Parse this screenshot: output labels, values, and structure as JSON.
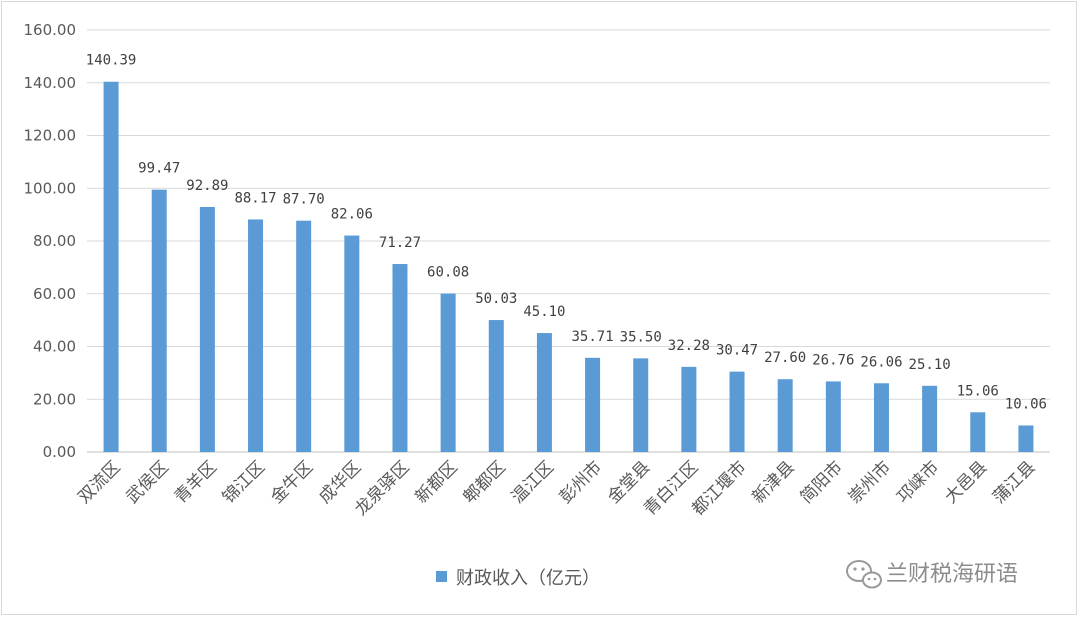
{
  "chart_data": {
    "type": "bar",
    "categories": [
      "双流区",
      "武侯区",
      "青羊区",
      "锦江区",
      "金牛区",
      "成华区",
      "龙泉驿区",
      "新都区",
      "郫都区",
      "温江区",
      "彭州市",
      "金堂县",
      "青白江区",
      "都江堰市",
      "新津县",
      "简阳市",
      "崇州市",
      "邛崃市",
      "大邑县",
      "蒲江县"
    ],
    "series": [
      {
        "name": "财政收入（亿元）",
        "values": [
          140.39,
          99.47,
          92.89,
          88.17,
          87.7,
          82.06,
          71.27,
          60.08,
          50.03,
          45.1,
          35.71,
          35.5,
          32.28,
          30.47,
          27.6,
          26.76,
          26.06,
          25.1,
          15.06,
          10.06
        ],
        "labels": [
          "140.39",
          "99.47",
          "92.89",
          "88.17",
          "87.70",
          "82.06",
          "71.27",
          "60.08",
          "50.03",
          "45.10",
          "35.71",
          "35.50",
          "32.28",
          "30.47",
          "27.60",
          "26.76",
          "26.06",
          "25.10",
          "15.06",
          "10.06"
        ]
      }
    ],
    "ylim": [
      0,
      160
    ],
    "yticks": [
      "0.00",
      "20.00",
      "40.00",
      "60.00",
      "80.00",
      "100.00",
      "120.00",
      "140.00",
      "160.00"
    ],
    "grid": true,
    "legend_position": "bottom",
    "bar_color": "#5b9bd5"
  },
  "watermark": {
    "text": "兰财税海研语",
    "icon": "wechat-icon"
  }
}
